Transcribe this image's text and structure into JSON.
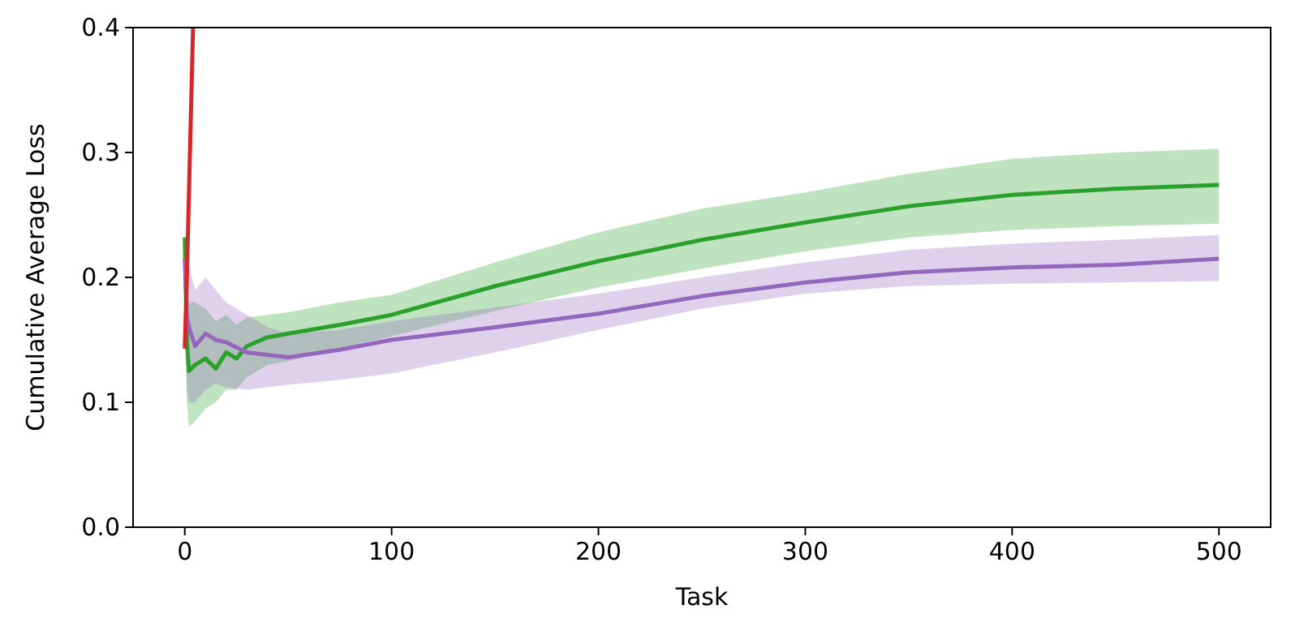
{
  "chart_data": {
    "type": "line",
    "xlabel": "Task",
    "ylabel": "Cumulative Average Loss",
    "xlim": [
      -25,
      525
    ],
    "ylim": [
      0,
      0.4
    ],
    "xticks": [
      0,
      100,
      200,
      300,
      400,
      500
    ],
    "yticks": [
      {
        "value": 0,
        "label": "0.0"
      },
      0.1,
      0.2,
      0.3,
      0.4
    ],
    "grid": false,
    "series": [
      {
        "color": "#2ca02c",
        "x": [
          0,
          1,
          2,
          5,
          10,
          15,
          20,
          25,
          30,
          40,
          50,
          75,
          100,
          150,
          200,
          250,
          300,
          350,
          400,
          450,
          500
        ],
        "values": [
          0.232,
          0.15,
          0.125,
          0.13,
          0.135,
          0.127,
          0.14,
          0.135,
          0.145,
          0.152,
          0.155,
          0.162,
          0.17,
          0.193,
          0.213,
          0.23,
          0.244,
          0.257,
          0.266,
          0.271,
          0.274
        ],
        "lower": [
          0.2,
          0.1,
          0.08,
          0.085,
          0.095,
          0.1,
          0.11,
          0.11,
          0.12,
          0.13,
          0.133,
          0.143,
          0.153,
          0.173,
          0.192,
          0.207,
          0.221,
          0.232,
          0.238,
          0.241,
          0.243
        ],
        "upper": [
          0.24,
          0.2,
          0.18,
          0.18,
          0.175,
          0.165,
          0.17,
          0.162,
          0.168,
          0.17,
          0.172,
          0.18,
          0.186,
          0.212,
          0.236,
          0.255,
          0.268,
          0.283,
          0.295,
          0.3,
          0.303
        ]
      },
      {
        "color": "#9467bd",
        "x": [
          0,
          1,
          2,
          5,
          10,
          15,
          20,
          30,
          40,
          50,
          75,
          100,
          150,
          200,
          250,
          300,
          350,
          400,
          450,
          500
        ],
        "values": [
          0.215,
          0.17,
          0.16,
          0.145,
          0.155,
          0.15,
          0.148,
          0.14,
          0.138,
          0.136,
          0.142,
          0.15,
          0.16,
          0.171,
          0.185,
          0.196,
          0.204,
          0.208,
          0.21,
          0.215
        ],
        "lower": [
          0.16,
          0.11,
          0.1,
          0.1,
          0.11,
          0.115,
          0.112,
          0.11,
          0.112,
          0.114,
          0.118,
          0.123,
          0.14,
          0.158,
          0.175,
          0.187,
          0.193,
          0.195,
          0.196,
          0.197
        ],
        "upper": [
          0.23,
          0.22,
          0.21,
          0.19,
          0.2,
          0.19,
          0.18,
          0.17,
          0.16,
          0.155,
          0.158,
          0.165,
          0.176,
          0.187,
          0.2,
          0.212,
          0.222,
          0.227,
          0.23,
          0.234
        ]
      },
      {
        "color": "#d62728",
        "x": [
          0,
          1,
          4
        ],
        "values": [
          0.143,
          0.2,
          0.4
        ]
      }
    ]
  }
}
